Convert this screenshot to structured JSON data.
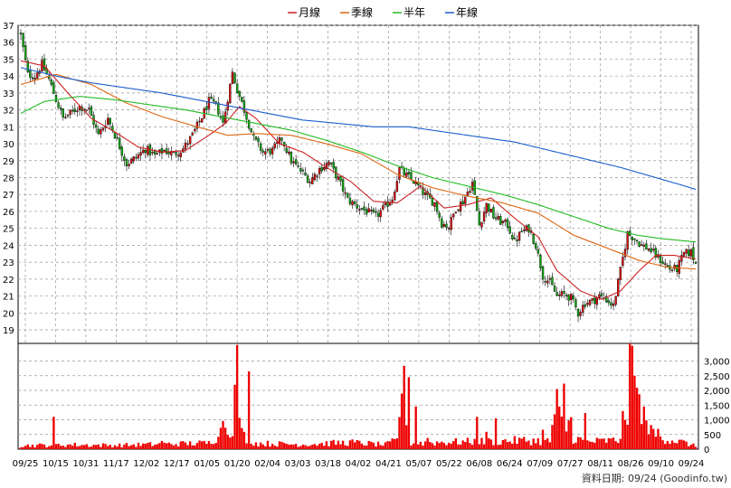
{
  "chart_data": {
    "type": "candlestick",
    "legend": {
      "placement": "top-center",
      "items": [
        {
          "label": "月線",
          "color": "#cc2222"
        },
        {
          "label": "季線",
          "color": "#dd6611"
        },
        {
          "label": "半年",
          "color": "#22bb22"
        },
        {
          "label": "年線",
          "color": "#1a5fcc"
        }
      ]
    },
    "price_axis": {
      "ylim": [
        18.2,
        37
      ],
      "ticks": [
        19,
        20,
        21,
        22,
        23,
        24,
        25,
        26,
        27,
        28,
        29,
        30,
        31,
        32,
        33,
        34,
        35,
        36,
        37
      ]
    },
    "volume_axis": {
      "ylim": [
        0,
        3600
      ],
      "ticks": [
        0,
        500,
        1000,
        1500,
        2000,
        2500,
        3000
      ],
      "tick_labels": [
        "0",
        "500",
        "1,000",
        "1,500",
        "2,000",
        "2,500",
        "3,000"
      ]
    },
    "x_labels": [
      "09/25",
      "10/15",
      "10/31",
      "11/17",
      "12/02",
      "12/17",
      "01/05",
      "01/20",
      "02/04",
      "03/03",
      "03/18",
      "04/02",
      "04/21",
      "05/07",
      "05/22",
      "06/08",
      "06/24",
      "07/09",
      "07/27",
      "08/11",
      "08/26",
      "09/10",
      "09/24"
    ],
    "grid": true,
    "up_color": "#dd1111",
    "down_color": "#11aa11",
    "volume_color": "#ee0000",
    "close_anchors": [
      [
        0,
        36.4
      ],
      [
        3,
        34.1
      ],
      [
        6,
        34.0
      ],
      [
        9,
        34.7
      ],
      [
        12,
        33.8
      ],
      [
        15,
        32.6
      ],
      [
        18,
        31.5
      ],
      [
        21,
        31.8
      ],
      [
        25,
        32.2
      ],
      [
        29,
        32.0
      ],
      [
        33,
        30.5
      ],
      [
        37,
        31.5
      ],
      [
        41,
        30.2
      ],
      [
        45,
        28.8
      ],
      [
        49,
        29.2
      ],
      [
        53,
        29.7
      ],
      [
        57,
        29.3
      ],
      [
        61,
        29.6
      ],
      [
        65,
        29.4
      ],
      [
        69,
        29.7
      ],
      [
        73,
        30.5
      ],
      [
        77,
        31.6
      ],
      [
        80,
        32.5
      ],
      [
        83,
        32.3
      ],
      [
        86,
        31.2
      ],
      [
        90,
        34.2
      ],
      [
        92,
        33.2
      ],
      [
        95,
        32.0
      ],
      [
        99,
        30.3
      ],
      [
        103,
        29.5
      ],
      [
        107,
        29.6
      ],
      [
        111,
        30.3
      ],
      [
        115,
        29.0
      ],
      [
        119,
        28.4
      ],
      [
        123,
        27.8
      ],
      [
        127,
        28.5
      ],
      [
        131,
        28.9
      ],
      [
        135,
        27.9
      ],
      [
        139,
        26.7
      ],
      [
        143,
        26.3
      ],
      [
        147,
        26.0
      ],
      [
        151,
        25.7
      ],
      [
        155,
        26.3
      ],
      [
        158,
        26.8
      ],
      [
        161,
        28.5
      ],
      [
        164,
        28.1
      ],
      [
        167,
        27.8
      ],
      [
        170,
        27.3
      ],
      [
        173,
        26.8
      ],
      [
        176,
        26.5
      ],
      [
        179,
        25.3
      ],
      [
        182,
        25.1
      ],
      [
        185,
        26.2
      ],
      [
        188,
        26.6
      ],
      [
        192,
        27.7
      ],
      [
        195,
        25.2
      ],
      [
        198,
        26.4
      ],
      [
        201,
        25.7
      ],
      [
        204,
        25.4
      ],
      [
        207,
        25.2
      ],
      [
        210,
        24.2
      ],
      [
        213,
        24.8
      ],
      [
        216,
        25.0
      ],
      [
        219,
        24.0
      ],
      [
        222,
        22.2
      ],
      [
        225,
        21.8
      ],
      [
        228,
        21.0
      ],
      [
        231,
        21.1
      ],
      [
        234,
        20.9
      ],
      [
        237,
        20.0
      ],
      [
        240,
        20.6
      ],
      [
        243,
        20.7
      ],
      [
        246,
        21.0
      ],
      [
        249,
        20.8
      ],
      [
        252,
        20.4
      ],
      [
        255,
        22.5
      ],
      [
        258,
        24.7
      ],
      [
        261,
        24.4
      ],
      [
        264,
        24.0
      ],
      [
        267,
        23.8
      ],
      [
        270,
        23.4
      ],
      [
        273,
        23.0
      ],
      [
        276,
        22.6
      ],
      [
        279,
        22.6
      ],
      [
        282,
        23.5
      ],
      [
        285,
        23.6
      ],
      [
        287,
        22.9
      ]
    ],
    "ma_month": [
      [
        0,
        34.9
      ],
      [
        10,
        34.6
      ],
      [
        20,
        33.0
      ],
      [
        30,
        31.5
      ],
      [
        40,
        30.7
      ],
      [
        50,
        29.8
      ],
      [
        60,
        29.5
      ],
      [
        70,
        29.6
      ],
      [
        80,
        30.5
      ],
      [
        87,
        31.2
      ],
      [
        93,
        32.2
      ],
      [
        100,
        31.5
      ],
      [
        110,
        30.0
      ],
      [
        120,
        29.5
      ],
      [
        130,
        28.6
      ],
      [
        140,
        27.8
      ],
      [
        150,
        26.6
      ],
      [
        160,
        26.5
      ],
      [
        170,
        27.5
      ],
      [
        180,
        26.2
      ],
      [
        190,
        26.4
      ],
      [
        200,
        26.8
      ],
      [
        210,
        25.6
      ],
      [
        220,
        24.5
      ],
      [
        228,
        22.5
      ],
      [
        238,
        21.3
      ],
      [
        247,
        20.8
      ],
      [
        255,
        21.3
      ],
      [
        263,
        22.5
      ],
      [
        270,
        23.4
      ],
      [
        278,
        23.4
      ],
      [
        287,
        23.2
      ]
    ],
    "ma_quarter": [
      [
        0,
        33.5
      ],
      [
        15,
        34.1
      ],
      [
        30,
        33.5
      ],
      [
        45,
        32.4
      ],
      [
        60,
        31.6
      ],
      [
        75,
        31.0
      ],
      [
        88,
        30.5
      ],
      [
        100,
        30.6
      ],
      [
        115,
        30.5
      ],
      [
        130,
        30.0
      ],
      [
        145,
        29.4
      ],
      [
        160,
        28.2
      ],
      [
        175,
        27.4
      ],
      [
        190,
        26.9
      ],
      [
        205,
        26.5
      ],
      [
        220,
        25.9
      ],
      [
        235,
        24.6
      ],
      [
        250,
        23.8
      ],
      [
        263,
        23.1
      ],
      [
        275,
        22.7
      ],
      [
        287,
        22.6
      ]
    ],
    "ma_half": [
      [
        0,
        31.8
      ],
      [
        10,
        32.5
      ],
      [
        25,
        32.8
      ],
      [
        40,
        32.6
      ],
      [
        55,
        32.3
      ],
      [
        70,
        32.0
      ],
      [
        85,
        31.6
      ],
      [
        100,
        31.2
      ],
      [
        115,
        30.8
      ],
      [
        130,
        30.2
      ],
      [
        145,
        29.5
      ],
      [
        160,
        28.7
      ],
      [
        175,
        28.0
      ],
      [
        190,
        27.5
      ],
      [
        205,
        27.0
      ],
      [
        220,
        26.4
      ],
      [
        235,
        25.7
      ],
      [
        250,
        25.0
      ],
      [
        262,
        24.6
      ],
      [
        272,
        24.4
      ],
      [
        287,
        24.2
      ]
    ],
    "ma_year": [
      [
        0,
        34.5
      ],
      [
        15,
        34.0
      ],
      [
        30,
        33.6
      ],
      [
        45,
        33.3
      ],
      [
        60,
        33.0
      ],
      [
        75,
        32.6
      ],
      [
        90,
        32.2
      ],
      [
        105,
        31.8
      ],
      [
        120,
        31.4
      ],
      [
        135,
        31.2
      ],
      [
        150,
        31.0
      ],
      [
        165,
        31.0
      ],
      [
        180,
        30.7
      ],
      [
        195,
        30.4
      ],
      [
        210,
        30.1
      ],
      [
        225,
        29.6
      ],
      [
        240,
        29.1
      ],
      [
        255,
        28.6
      ],
      [
        270,
        28.0
      ],
      [
        280,
        27.6
      ],
      [
        287,
        27.3
      ]
    ],
    "volume_anchors": [
      [
        0,
        120
      ],
      [
        20,
        150
      ],
      [
        40,
        130
      ],
      [
        60,
        170
      ],
      [
        80,
        210
      ],
      [
        90,
        900
      ],
      [
        92,
        2600
      ],
      [
        94,
        500
      ],
      [
        100,
        200
      ],
      [
        120,
        160
      ],
      [
        140,
        230
      ],
      [
        155,
        150
      ],
      [
        160,
        300
      ],
      [
        162,
        2400
      ],
      [
        164,
        1400
      ],
      [
        166,
        200
      ],
      [
        180,
        240
      ],
      [
        200,
        260
      ],
      [
        215,
        300
      ],
      [
        225,
        260
      ],
      [
        228,
        1500
      ],
      [
        230,
        900
      ],
      [
        235,
        400
      ],
      [
        240,
        250
      ],
      [
        255,
        300
      ],
      [
        258,
        2100
      ],
      [
        259,
        3500
      ],
      [
        260,
        2800
      ],
      [
        262,
        1800
      ],
      [
        264,
        1000
      ],
      [
        266,
        700
      ],
      [
        270,
        500
      ],
      [
        275,
        350
      ],
      [
        282,
        220
      ],
      [
        287,
        100
      ]
    ],
    "volume_spikes": [
      [
        14,
        1100
      ],
      [
        60,
        280
      ],
      [
        84,
        420
      ],
      [
        86,
        960
      ],
      [
        97,
        2650
      ],
      [
        165,
        2450
      ],
      [
        168,
        1450
      ],
      [
        173,
        380
      ],
      [
        194,
        1100
      ],
      [
        198,
        590
      ],
      [
        202,
        1050
      ],
      [
        222,
        660
      ],
      [
        226,
        820
      ],
      [
        229,
        1450
      ],
      [
        231,
        2230
      ],
      [
        233,
        980
      ],
      [
        234,
        1090
      ],
      [
        240,
        1230
      ],
      [
        255,
        350
      ],
      [
        258,
        830
      ],
      [
        260,
        3520
      ],
      [
        261,
        2500
      ],
      [
        263,
        1870
      ],
      [
        265,
        1450
      ],
      [
        266,
        980
      ],
      [
        268,
        820
      ],
      [
        271,
        690
      ]
    ]
  },
  "footer": {
    "label": "資料日期: 09/24 (Goodinfo.tw)"
  }
}
